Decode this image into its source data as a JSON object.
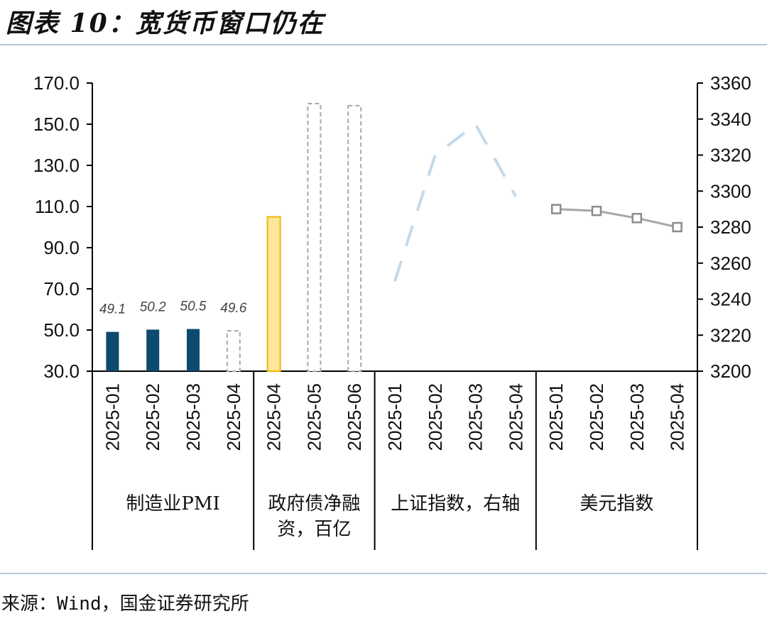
{
  "header": {
    "title": "图表 10：宽货币窗口仍在"
  },
  "footer": {
    "source": "来源：Wind，国金证券研究所"
  },
  "colors": {
    "navy": "#0d4a6e",
    "gold_fill": "#fde79c",
    "gold_edge": "#f0b800",
    "dash_gray": "#a9a9a9",
    "light_blue": "#c5d9e8",
    "line_gray": "#a6a6a6",
    "rule": "#b9c9d6"
  },
  "chart_data": {
    "type": "bar",
    "left_axis": {
      "ylim": [
        30,
        170
      ],
      "ticks": [
        "30.0",
        "50.0",
        "70.0",
        "90.0",
        "110.0",
        "130.0",
        "150.0",
        "170.0"
      ]
    },
    "right_axis": {
      "ylim": [
        3200,
        3360
      ],
      "ticks": [
        "3200",
        "3220",
        "3240",
        "3260",
        "3280",
        "3300",
        "3320",
        "3340",
        "3360"
      ]
    },
    "groups": [
      {
        "label": "制造业PMI",
        "categories": [
          "2025-01",
          "2025-02",
          "2025-03",
          "2025-04"
        ],
        "values": [
          49.1,
          50.2,
          50.5,
          49.6
        ],
        "data_labels": [
          "49.1",
          "50.2",
          "50.5",
          "49.6"
        ],
        "styles": [
          "solid",
          "solid",
          "solid",
          "dashed"
        ],
        "axis": "left"
      },
      {
        "label": "政府债净融资，百亿",
        "categories": [
          "2025-04",
          "2025-05",
          "2025-06"
        ],
        "values": [
          105,
          160,
          159
        ],
        "styles": [
          "gold",
          "dashed",
          "dashed"
        ],
        "axis": "left"
      },
      {
        "label": "上证指数，右轴",
        "categories": [
          "2025-01",
          "2025-02",
          "2025-03",
          "2025-04"
        ],
        "values": [
          3250,
          3320,
          3337,
          3297
        ],
        "style": "dashed-line",
        "axis": "right"
      },
      {
        "label": "美元指数",
        "categories": [
          "2025-01",
          "2025-02",
          "2025-03",
          "2025-04"
        ],
        "values": [
          3290,
          3289,
          3285,
          3280
        ],
        "style": "line-square",
        "axis": "right"
      }
    ]
  }
}
